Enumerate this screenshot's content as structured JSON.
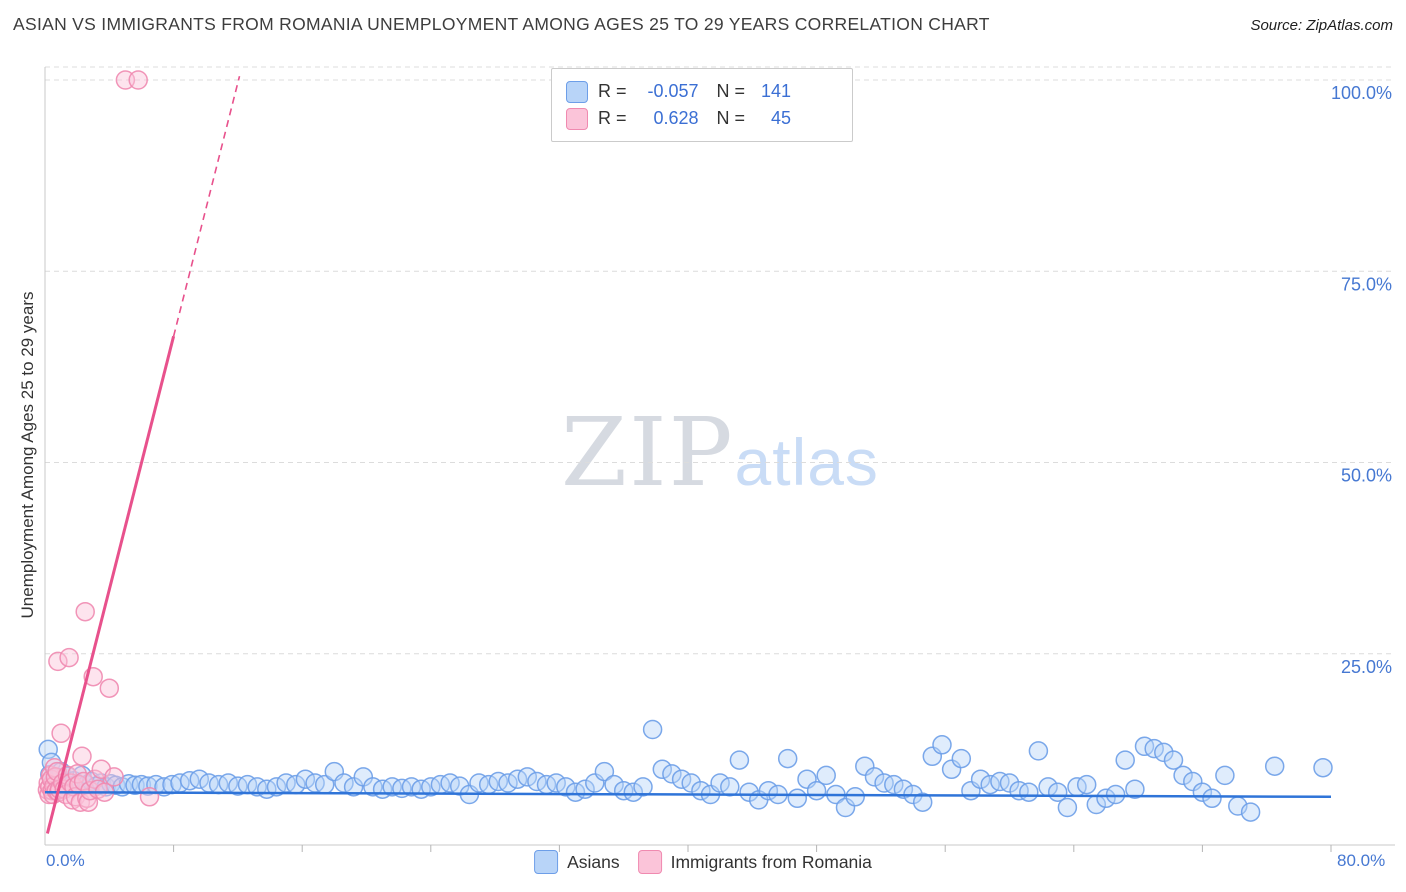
{
  "header": {
    "title": "ASIAN VS IMMIGRANTS FROM ROMANIA UNEMPLOYMENT AMONG AGES 25 TO 29 YEARS CORRELATION CHART",
    "source": "Source: ZipAtlas.com"
  },
  "watermark": {
    "zip": "ZIP",
    "atlas": "atlas"
  },
  "legend_box": {
    "rows": [
      {
        "r_label": "R =",
        "r_value": "-0.057",
        "n_label": "N =",
        "n_value": "141",
        "swatch_fill": "#b8d4f8",
        "swatch_border": "#6d9ee8"
      },
      {
        "r_label": "R =",
        "r_value": "0.628",
        "n_label": "N =",
        "n_value": "45",
        "swatch_fill": "#fbc4d9",
        "swatch_border": "#f08ab0"
      }
    ]
  },
  "axes": {
    "y_label": "Unemployment Among Ages 25 to 29 years",
    "y_ticks": [
      {
        "label": "100.0%",
        "value": 100
      },
      {
        "label": "75.0%",
        "value": 75
      },
      {
        "label": "50.0%",
        "value": 50
      },
      {
        "label": "25.0%",
        "value": 25
      }
    ],
    "x_min_label": "0.0%",
    "x_max_label": "80.0%"
  },
  "bottom_legend": [
    {
      "label": "Asians",
      "swatch_fill": "#b8d4f8",
      "swatch_border": "#6d9ee8"
    },
    {
      "label": "Immigrants from Romania",
      "swatch_fill": "#fbc4d9",
      "swatch_border": "#f08ab0"
    }
  ],
  "chart_data": {
    "type": "scatter",
    "title": "ASIAN VS IMMIGRANTS FROM ROMANIA UNEMPLOYMENT AMONG AGES 25 TO 29 YEARS CORRELATION CHART",
    "ylabel": "Unemployment Among Ages 25 to 29 years",
    "x_unit": "percent",
    "y_unit": "percent",
    "xlim": [
      0,
      80
    ],
    "ylim": [
      0,
      100
    ],
    "grid_y": [
      25,
      50,
      75,
      100
    ],
    "legend_position": "bottom-center",
    "series": [
      {
        "name": "Asians",
        "R": -0.057,
        "N": 141,
        "color": "#6d9ee8",
        "fill": "#b8d4f8",
        "points": [
          [
            0.2,
            12.5
          ],
          [
            0.3,
            9.2
          ],
          [
            0.4,
            10.8
          ],
          [
            0.5,
            8.2
          ],
          [
            0.6,
            7.6
          ],
          [
            0.8,
            8.8
          ],
          [
            1,
            9.6
          ],
          [
            1.2,
            8.1
          ],
          [
            1.4,
            9
          ],
          [
            1.6,
            7.7
          ],
          [
            1.8,
            8.4
          ],
          [
            2,
            8
          ],
          [
            2.3,
            9.1
          ],
          [
            2.6,
            7.9
          ],
          [
            2.9,
            8.3
          ],
          [
            3.2,
            7.7
          ],
          [
            3.5,
            8.1
          ],
          [
            3.8,
            7.6
          ],
          [
            4.1,
            8
          ],
          [
            4.4,
            7.8
          ],
          [
            4.8,
            7.6
          ],
          [
            5.2,
            8
          ],
          [
            5.6,
            7.8
          ],
          [
            6,
            7.9
          ],
          [
            6.4,
            7.7
          ],
          [
            6.9,
            7.9
          ],
          [
            7.4,
            7.6
          ],
          [
            7.9,
            7.9
          ],
          [
            8.4,
            8.1
          ],
          [
            9,
            8.4
          ],
          [
            9.6,
            8.6
          ],
          [
            10.2,
            8.1
          ],
          [
            10.8,
            7.9
          ],
          [
            11.4,
            8.1
          ],
          [
            12,
            7.7
          ],
          [
            12.6,
            7.9
          ],
          [
            13.2,
            7.6
          ],
          [
            13.8,
            7.3
          ],
          [
            14.4,
            7.6
          ],
          [
            15,
            8.1
          ],
          [
            15.6,
            7.9
          ],
          [
            16.2,
            8.6
          ],
          [
            16.8,
            8.1
          ],
          [
            17.4,
            7.9
          ],
          [
            18,
            9.6
          ],
          [
            18.6,
            8.1
          ],
          [
            19.2,
            7.6
          ],
          [
            19.8,
            8.9
          ],
          [
            20.4,
            7.6
          ],
          [
            21,
            7.3
          ],
          [
            21.6,
            7.6
          ],
          [
            22.2,
            7.4
          ],
          [
            22.8,
            7.6
          ],
          [
            23.4,
            7.3
          ],
          [
            24,
            7.6
          ],
          [
            24.6,
            7.9
          ],
          [
            25.2,
            8.1
          ],
          [
            25.8,
            7.7
          ],
          [
            26.4,
            6.6
          ],
          [
            27,
            8.1
          ],
          [
            27.6,
            7.9
          ],
          [
            28.2,
            8.3
          ],
          [
            28.8,
            8.1
          ],
          [
            29.4,
            8.6
          ],
          [
            30,
            8.9
          ],
          [
            30.6,
            8.3
          ],
          [
            31.2,
            7.9
          ],
          [
            31.8,
            8.1
          ],
          [
            32.4,
            7.6
          ],
          [
            33,
            6.9
          ],
          [
            33.6,
            7.3
          ],
          [
            34.2,
            8.1
          ],
          [
            34.8,
            9.6
          ],
          [
            35.4,
            7.9
          ],
          [
            36,
            7.1
          ],
          [
            36.6,
            6.9
          ],
          [
            37.2,
            7.6
          ],
          [
            37.8,
            15.1
          ],
          [
            38.4,
            9.9
          ],
          [
            39,
            9.3
          ],
          [
            39.6,
            8.6
          ],
          [
            40.2,
            8.1
          ],
          [
            40.8,
            7.1
          ],
          [
            41.4,
            6.6
          ],
          [
            42,
            8.1
          ],
          [
            42.6,
            7.6
          ],
          [
            43.2,
            11.1
          ],
          [
            43.8,
            6.9
          ],
          [
            44.4,
            5.9
          ],
          [
            45,
            7.1
          ],
          [
            45.6,
            6.6
          ],
          [
            46.2,
            11.3
          ],
          [
            46.8,
            6.1
          ],
          [
            47.4,
            8.6
          ],
          [
            48,
            7.1
          ],
          [
            48.6,
            9.1
          ],
          [
            49.2,
            6.6
          ],
          [
            49.8,
            4.9
          ],
          [
            50.4,
            6.3
          ],
          [
            51,
            10.3
          ],
          [
            51.6,
            8.9
          ],
          [
            52.2,
            8.1
          ],
          [
            52.8,
            7.9
          ],
          [
            53.4,
            7.3
          ],
          [
            54,
            6.6
          ],
          [
            54.6,
            5.6
          ],
          [
            55.2,
            11.6
          ],
          [
            55.8,
            13.1
          ],
          [
            56.4,
            9.9
          ],
          [
            57,
            11.3
          ],
          [
            57.6,
            7.1
          ],
          [
            58.2,
            8.6
          ],
          [
            58.8,
            7.9
          ],
          [
            59.4,
            8.3
          ],
          [
            60,
            8.1
          ],
          [
            60.6,
            7.1
          ],
          [
            61.2,
            6.9
          ],
          [
            61.8,
            12.3
          ],
          [
            62.4,
            7.6
          ],
          [
            63,
            6.9
          ],
          [
            63.6,
            4.9
          ],
          [
            64.2,
            7.6
          ],
          [
            64.8,
            7.9
          ],
          [
            65.4,
            5.3
          ],
          [
            66,
            6.1
          ],
          [
            66.6,
            6.6
          ],
          [
            67.2,
            11.1
          ],
          [
            67.8,
            7.3
          ],
          [
            68.4,
            12.9
          ],
          [
            69,
            12.6
          ],
          [
            69.6,
            12.1
          ],
          [
            70.2,
            11.1
          ],
          [
            70.8,
            9.1
          ],
          [
            71.4,
            8.3
          ],
          [
            72,
            6.9
          ],
          [
            72.6,
            6.1
          ],
          [
            73.4,
            9.1
          ],
          [
            74.2,
            5.1
          ],
          [
            75,
            4.3
          ],
          [
            76.5,
            10.3
          ],
          [
            79.5,
            10.1
          ]
        ]
      },
      {
        "name": "Immigrants from Romania",
        "R": 0.628,
        "N": 45,
        "color": "#f08ab0",
        "fill": "#fbc4d9",
        "points": [
          [
            0.15,
            7.2
          ],
          [
            0.2,
            8.1
          ],
          [
            0.25,
            6.6
          ],
          [
            0.3,
            7.6
          ],
          [
            0.35,
            9.1
          ],
          [
            0.4,
            8.6
          ],
          [
            0.45,
            7.1
          ],
          [
            0.5,
            6.6
          ],
          [
            0.55,
            7.7
          ],
          [
            0.6,
            10.1
          ],
          [
            0.65,
            8.9
          ],
          [
            0.7,
            7.1
          ],
          [
            0.75,
            9.6
          ],
          [
            0.8,
            24
          ],
          [
            0.85,
            6.9
          ],
          [
            0.9,
            7.3
          ],
          [
            1,
            14.6
          ],
          [
            1.1,
            8.1
          ],
          [
            1.2,
            7.3
          ],
          [
            1.3,
            6.6
          ],
          [
            1.4,
            9.1
          ],
          [
            1.5,
            24.5
          ],
          [
            1.6,
            8.1
          ],
          [
            1.7,
            5.9
          ],
          [
            1.8,
            7.6
          ],
          [
            1.9,
            6.3
          ],
          [
            2,
            9.3
          ],
          [
            2.1,
            7.9
          ],
          [
            2.2,
            5.6
          ],
          [
            2.3,
            11.6
          ],
          [
            2.4,
            8.3
          ],
          [
            2.5,
            30.5
          ],
          [
            2.6,
            6.1
          ],
          [
            2.7,
            5.6
          ],
          [
            2.8,
            7.1
          ],
          [
            3,
            22
          ],
          [
            3.1,
            8.6
          ],
          [
            3.3,
            7.3
          ],
          [
            3.5,
            9.9
          ],
          [
            3.7,
            6.9
          ],
          [
            4,
            20.5
          ],
          [
            4.3,
            8.9
          ],
          [
            5,
            100
          ],
          [
            5.8,
            100
          ],
          [
            6.5,
            6.3
          ]
        ]
      }
    ],
    "trend_lines": [
      {
        "series": "Asians",
        "style": "solid",
        "color": "#2f74d8",
        "points": [
          [
            0,
            6.9
          ],
          [
            80,
            6.3
          ]
        ]
      },
      {
        "series": "Immigrants from Romania",
        "style": "solid",
        "color": "#e8518c",
        "points": [
          [
            0.15,
            1.5
          ],
          [
            8,
            66.5
          ]
        ]
      },
      {
        "series": "Immigrants from Romania",
        "style": "dashed",
        "color": "#e8518c",
        "points": [
          [
            8,
            66.5
          ],
          [
            12.1,
            100.5
          ]
        ]
      }
    ]
  }
}
